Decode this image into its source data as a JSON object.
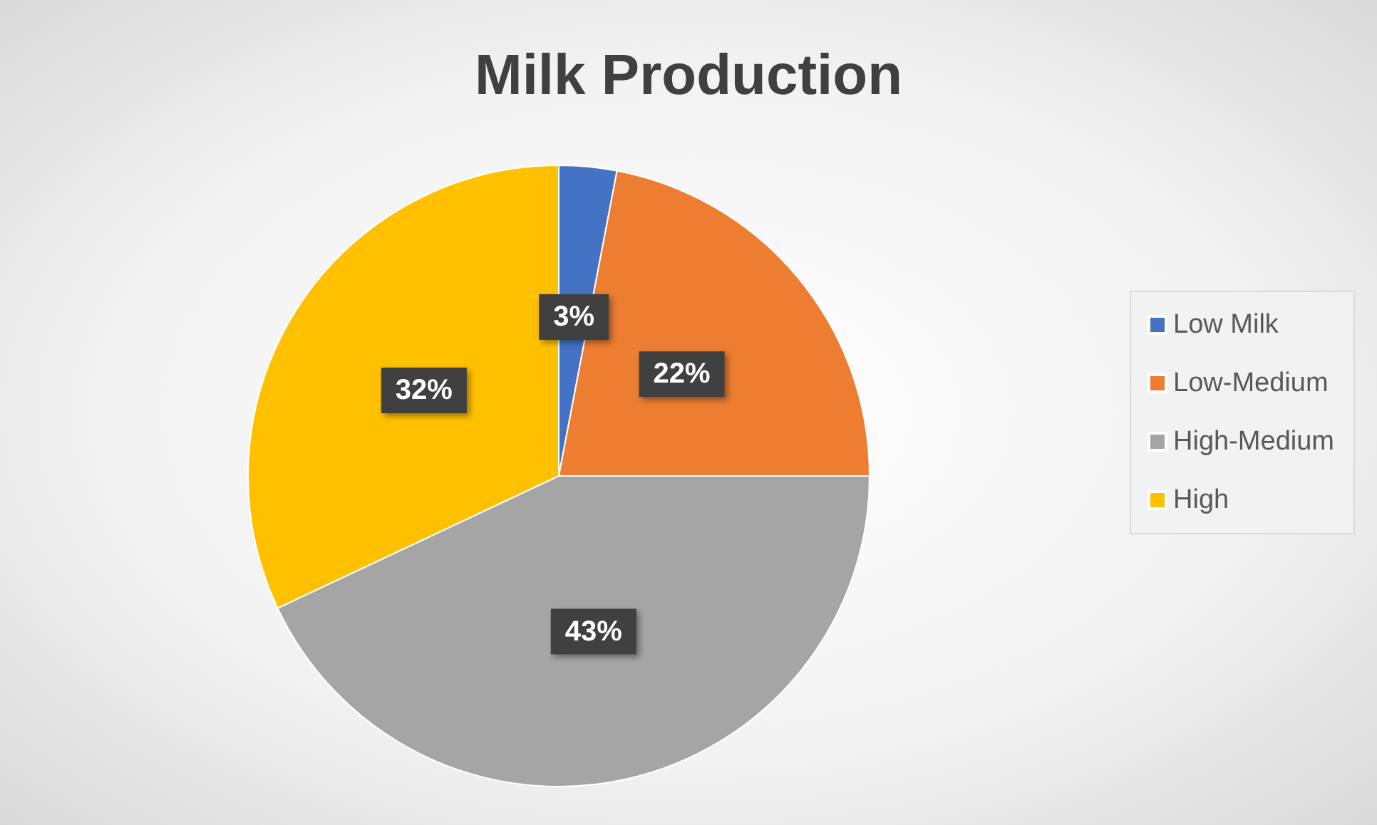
{
  "chart_data": {
    "type": "pie",
    "title": "Milk Production",
    "categories": [
      "Low Milk",
      "Low-Medium",
      "High-Medium",
      "High"
    ],
    "values": [
      3,
      22,
      43,
      32
    ],
    "colors": [
      "#4472c4",
      "#ed7d31",
      "#a5a5a5",
      "#ffc000"
    ],
    "value_labels": [
      "3%",
      "22%",
      "43%",
      "32%"
    ],
    "legend": "right"
  }
}
